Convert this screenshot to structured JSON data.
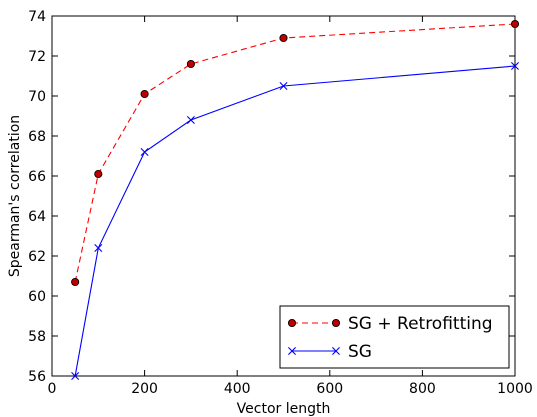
{
  "chart_data": {
    "type": "line",
    "xlabel": "Vector length",
    "ylabel": "Spearman's correlation",
    "xlim": [
      0,
      1000
    ],
    "ylim": [
      56,
      74
    ],
    "xticks": [
      0,
      200,
      400,
      600,
      800,
      1000
    ],
    "yticks": [
      56,
      58,
      60,
      62,
      64,
      66,
      68,
      70,
      72,
      74
    ],
    "grid": false,
    "legend_position": "lower-right",
    "series": [
      {
        "name": "SG + Retrofitting",
        "color": "#ff0000",
        "marker_fill": "#bf0000",
        "line_style": "dashed",
        "marker": "circle",
        "x": [
          50,
          100,
          200,
          300,
          500,
          1000
        ],
        "y": [
          60.7,
          66.1,
          70.1,
          71.6,
          72.9,
          73.6
        ]
      },
      {
        "name": "SG",
        "color": "#0000ff",
        "line_style": "solid",
        "marker": "x",
        "x": [
          50,
          100,
          200,
          300,
          500,
          1000
        ],
        "y": [
          56.0,
          62.4,
          67.2,
          68.8,
          70.5,
          71.5
        ]
      }
    ]
  }
}
